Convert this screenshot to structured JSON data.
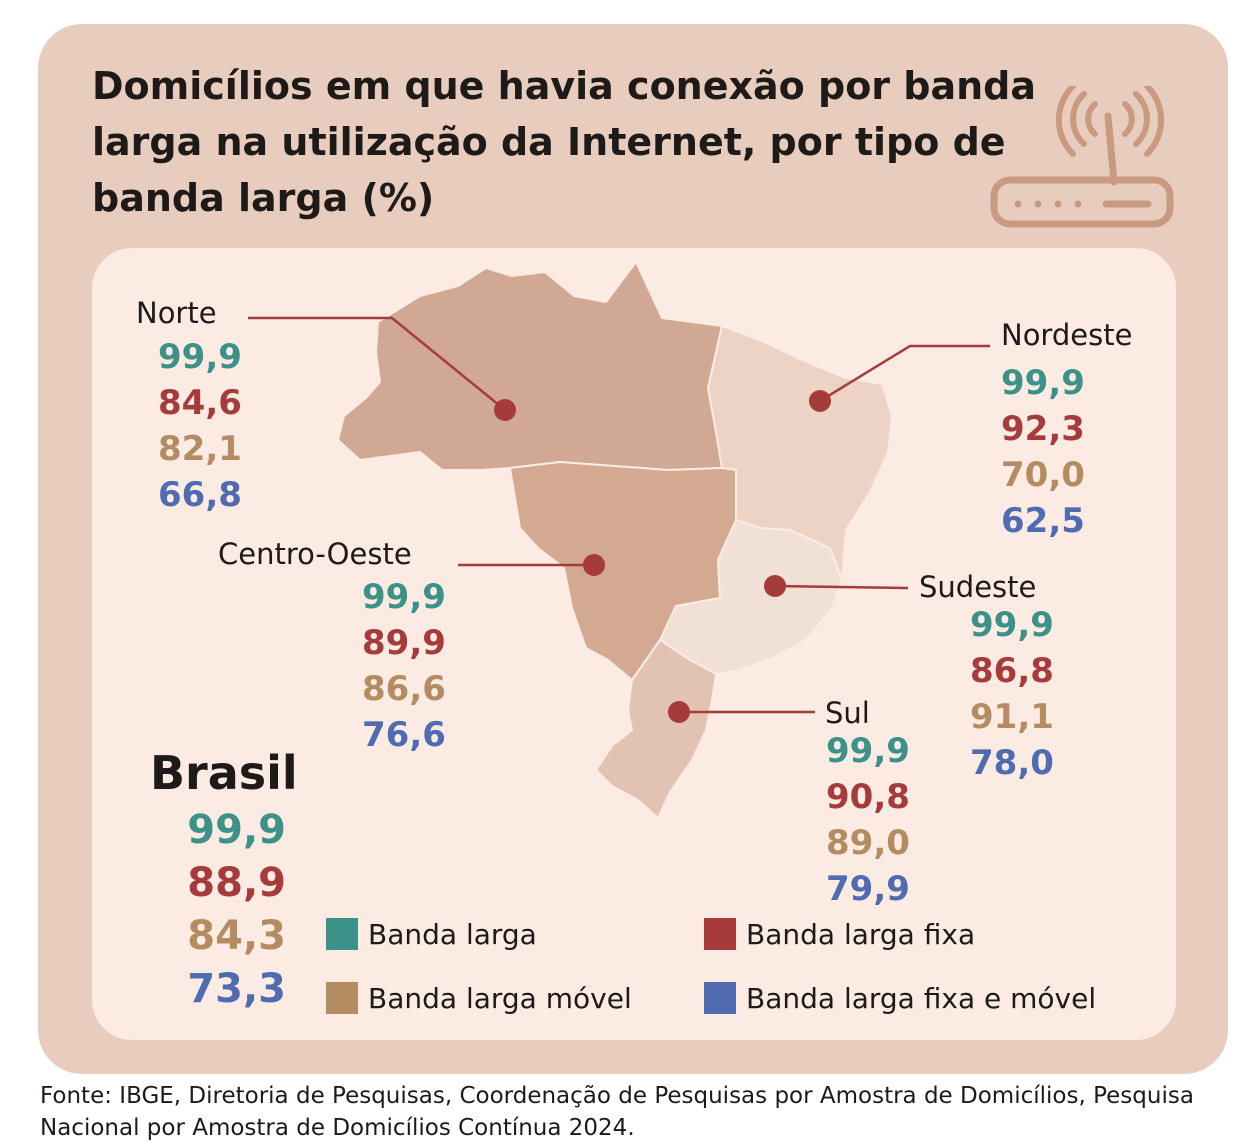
{
  "title": "Domicílios em que havia conexão por banda larga na utilização da Internet, por tipo de banda larga (%)",
  "icon": "router-wifi-icon",
  "colors": {
    "banda_larga": "#3c9289",
    "banda_larga_fixa": "#a63b3b",
    "banda_larga_movel": "#b58b62",
    "banda_larga_fixa_e_movel": "#4f6cb0",
    "card_background": "#e8cdbf",
    "panel_background": "#fbebe3"
  },
  "regions": [
    {
      "name": "Norte",
      "values": [
        "99,9",
        "84,6",
        "82,1",
        "66,8"
      ]
    },
    {
      "name": "Nordeste",
      "values": [
        "99,9",
        "92,3",
        "70,0",
        "62,5"
      ]
    },
    {
      "name": "Centro-Oeste",
      "values": [
        "99,9",
        "89,9",
        "86,6",
        "76,6"
      ]
    },
    {
      "name": "Sudeste",
      "values": [
        "99,9",
        "86,8",
        "91,1",
        "78,0"
      ]
    },
    {
      "name": "Sul",
      "values": [
        "99,9",
        "90,8",
        "89,0",
        "79,9"
      ]
    }
  ],
  "brasil": {
    "name": "Brasil",
    "values": [
      "99,9",
      "88,9",
      "84,3",
      "73,3"
    ]
  },
  "legend": [
    "Banda larga",
    "Banda larga fixa",
    "Banda larga móvel",
    "Banda larga fixa e móvel"
  ],
  "source": "Fonte: IBGE, Diretoria de Pesquisas, Coordenação de Pesquisas por Amostra de Domicílios, Pesquisa Nacional por Amostra de Domicílios Contínua 2024."
}
